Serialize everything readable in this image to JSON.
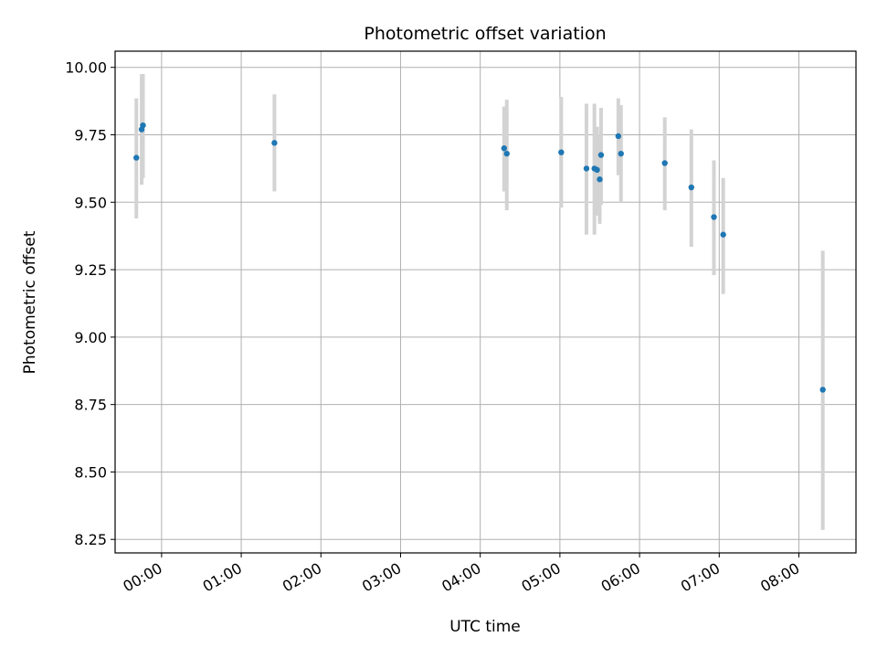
{
  "chart_data": {
    "type": "scatter",
    "title": "Photometric offset variation",
    "xlabel": "UTC time",
    "ylabel": "Photometric offset",
    "x_ticks": [
      "00:00",
      "01:00",
      "02:00",
      "03:00",
      "04:00",
      "05:00",
      "06:00",
      "07:00",
      "08:00"
    ],
    "y_ticks": [
      "8.25",
      "8.50",
      "8.75",
      "9.00",
      "9.25",
      "9.50",
      "9.75",
      "10.00"
    ],
    "xlim": [
      "23:25",
      "08:43"
    ],
    "ylim": [
      8.2,
      10.06
    ],
    "grid": true,
    "colors": {
      "marker": "#1f77b4",
      "errorbar": "#d3d3d3",
      "grid": "#b0b0b0"
    },
    "points": [
      {
        "x": "23:41",
        "y": 9.665,
        "err_low": 9.44,
        "err_high": 9.885
      },
      {
        "x": "23:45",
        "y": 9.77,
        "err_low": 9.565,
        "err_high": 9.975
      },
      {
        "x": "23:46",
        "y": 9.785,
        "err_low": 9.59,
        "err_high": 9.975
      },
      {
        "x": "01:25",
        "y": 9.72,
        "err_low": 9.54,
        "err_high": 9.9
      },
      {
        "x": "04:18",
        "y": 9.7,
        "err_low": 9.54,
        "err_high": 9.855
      },
      {
        "x": "04:20",
        "y": 9.68,
        "err_low": 9.47,
        "err_high": 9.88
      },
      {
        "x": "05:01",
        "y": 9.685,
        "err_low": 9.48,
        "err_high": 9.89
      },
      {
        "x": "05:20",
        "y": 9.625,
        "err_low": 9.38,
        "err_high": 9.865
      },
      {
        "x": "05:26",
        "y": 9.625,
        "err_low": 9.38,
        "err_high": 9.865
      },
      {
        "x": "05:28",
        "y": 9.62,
        "err_low": 9.45,
        "err_high": 9.78
      },
      {
        "x": "05:30",
        "y": 9.585,
        "err_low": 9.42,
        "err_high": 9.75
      },
      {
        "x": "05:31",
        "y": 9.675,
        "err_low": 9.49,
        "err_high": 9.85
      },
      {
        "x": "05:44",
        "y": 9.745,
        "err_low": 9.6,
        "err_high": 9.885
      },
      {
        "x": "05:46",
        "y": 9.68,
        "err_low": 9.5,
        "err_high": 9.86
      },
      {
        "x": "06:19",
        "y": 9.645,
        "err_low": 9.47,
        "err_high": 9.815
      },
      {
        "x": "06:39",
        "y": 9.555,
        "err_low": 9.335,
        "err_high": 9.77
      },
      {
        "x": "06:56",
        "y": 9.445,
        "err_low": 9.23,
        "err_high": 9.655
      },
      {
        "x": "07:03",
        "y": 9.38,
        "err_low": 9.16,
        "err_high": 9.59
      },
      {
        "x": "08:18",
        "y": 8.805,
        "err_low": 8.285,
        "err_high": 9.32
      }
    ]
  }
}
